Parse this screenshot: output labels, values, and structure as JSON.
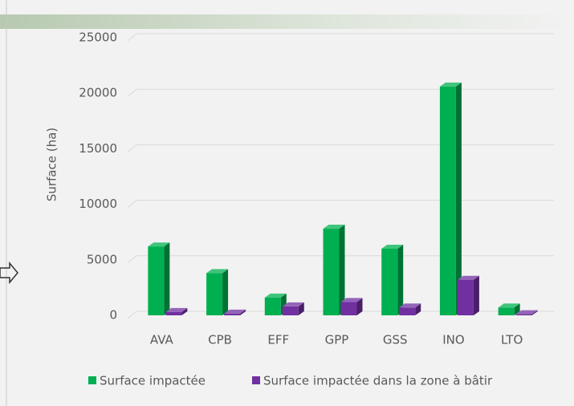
{
  "chart_data": {
    "type": "bar3d",
    "y_label": "Surface (ha)",
    "categories": [
      "AVA",
      "CPB",
      "EFF",
      "GPP",
      "GSS",
      "INO",
      "LTO"
    ],
    "series": [
      {
        "name": "Surface impactée",
        "color": "#00b050",
        "values": [
          6200,
          3800,
          1600,
          7800,
          6000,
          20600,
          700
        ]
      },
      {
        "name": "Surface impactée dans la zone à bâtir",
        "color": "#7030a0",
        "values": [
          300,
          150,
          800,
          1200,
          700,
          3200,
          100
        ]
      }
    ],
    "ylim": [
      0,
      25000
    ],
    "yticks": [
      0,
      5000,
      10000,
      15000,
      20000,
      25000
    ],
    "grid": true,
    "legend": "bottom"
  }
}
